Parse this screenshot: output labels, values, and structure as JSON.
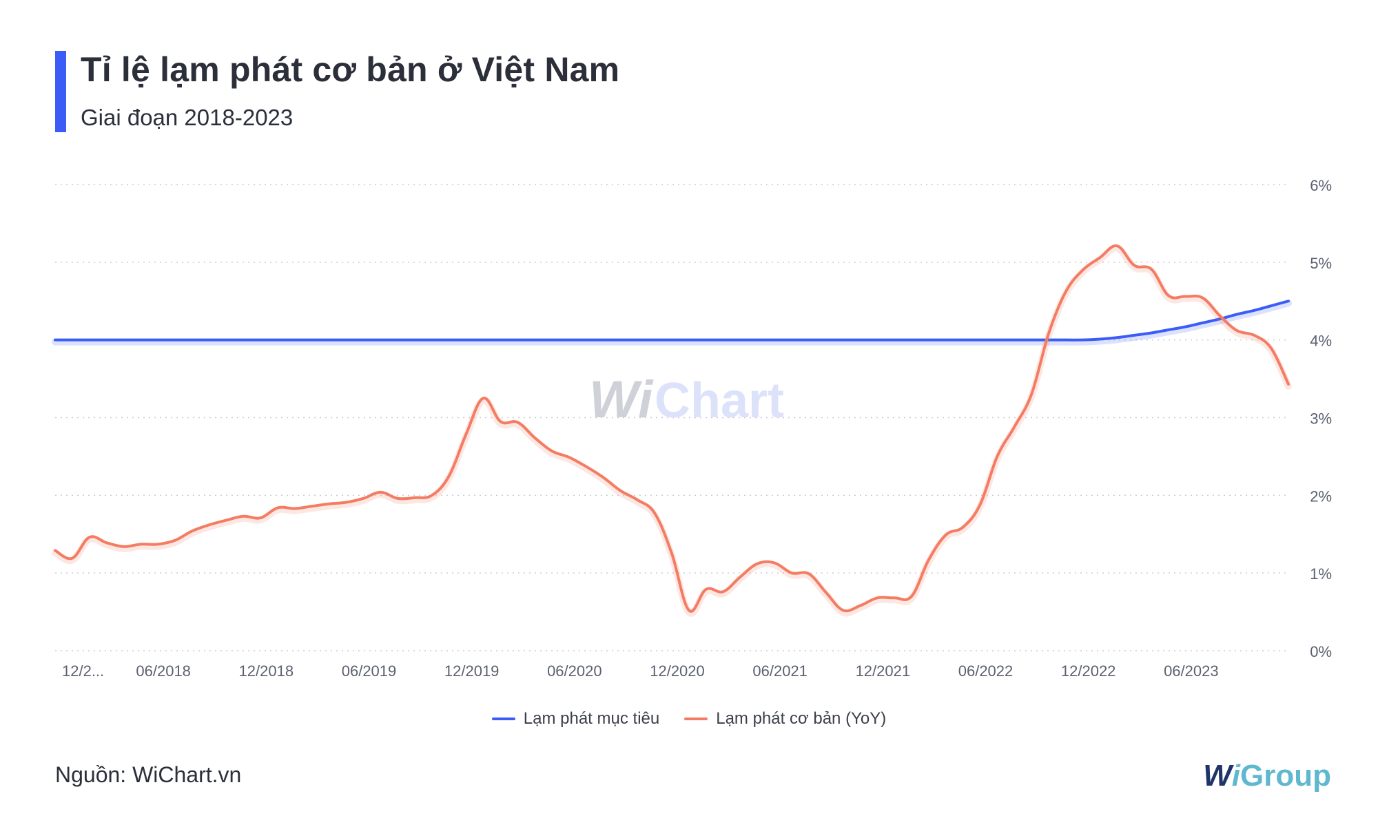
{
  "header": {
    "title": "Tỉ lệ lạm phát cơ bản ở Việt Nam",
    "subtitle": "Giai đoạn 2018-2023"
  },
  "footer": {
    "source": "Nguồn: WiChart.vn",
    "logo_w": "W",
    "logo_i": "i",
    "logo_group": "Group"
  },
  "watermark": {
    "w": "Wi",
    "chart": "Chart"
  },
  "colors": {
    "target": "#3b5cf6",
    "core": "#f47c62",
    "grid": "#c9ccd3",
    "axis_text": "#5b6070",
    "accent_bar": "#3b5cf6"
  },
  "chart_data": {
    "type": "line",
    "y_unit": "%",
    "ylim": [
      0,
      6
    ],
    "yticks": [
      "0%",
      "1%",
      "2%",
      "3%",
      "4%",
      "5%",
      "6%"
    ],
    "xlim": [
      "2017-12",
      "2023-12"
    ],
    "xticks": [
      "12/2...",
      "06/2018",
      "12/2018",
      "06/2019",
      "12/2019",
      "06/2020",
      "12/2020",
      "06/2021",
      "12/2021",
      "06/2022",
      "12/2022",
      "06/2023"
    ],
    "grid": true,
    "legend_position": "bottom",
    "x": [
      "2017-12",
      "2018-01",
      "2018-02",
      "2018-03",
      "2018-04",
      "2018-05",
      "2018-06",
      "2018-07",
      "2018-08",
      "2018-09",
      "2018-10",
      "2018-11",
      "2018-12",
      "2019-01",
      "2019-02",
      "2019-03",
      "2019-04",
      "2019-05",
      "2019-06",
      "2019-07",
      "2019-08",
      "2019-09",
      "2019-10",
      "2019-11",
      "2019-12",
      "2020-01",
      "2020-02",
      "2020-03",
      "2020-04",
      "2020-05",
      "2020-06",
      "2020-07",
      "2020-08",
      "2020-09",
      "2020-10",
      "2020-11",
      "2020-12",
      "2021-01",
      "2021-02",
      "2021-03",
      "2021-04",
      "2021-05",
      "2021-06",
      "2021-07",
      "2021-08",
      "2021-09",
      "2021-10",
      "2021-11",
      "2021-12",
      "2022-01",
      "2022-02",
      "2022-03",
      "2022-04",
      "2022-05",
      "2022-06",
      "2022-07",
      "2022-08",
      "2022-09",
      "2022-10",
      "2022-11",
      "2022-12",
      "2023-01",
      "2023-02",
      "2023-03",
      "2023-04",
      "2023-05",
      "2023-06",
      "2023-07",
      "2023-08",
      "2023-09",
      "2023-10",
      "2023-11",
      "2023-12"
    ],
    "series": [
      {
        "name": "Lạm phát mục tiêu",
        "color": "#3b5cf6",
        "values": [
          4,
          4,
          4,
          4,
          4,
          4,
          4,
          4,
          4,
          4,
          4,
          4,
          4,
          4,
          4,
          4,
          4,
          4,
          4,
          4,
          4,
          4,
          4,
          4,
          4,
          4,
          4,
          4,
          4,
          4,
          4,
          4,
          4,
          4,
          4,
          4,
          4,
          4,
          4,
          4,
          4,
          4,
          4,
          4,
          4,
          4,
          4,
          4,
          4,
          4,
          4,
          4,
          4,
          4,
          4,
          4,
          4,
          4,
          4,
          4,
          4,
          4.01,
          4.03,
          4.06,
          4.09,
          4.13,
          4.17,
          4.22,
          4.27,
          4.33,
          4.38,
          4.44,
          4.5
        ]
      },
      {
        "name": "Lạm phát cơ bản (YoY)",
        "color": "#f47c62",
        "values": [
          1.29,
          1.19,
          1.46,
          1.39,
          1.34,
          1.37,
          1.37,
          1.42,
          1.54,
          1.62,
          1.68,
          1.73,
          1.71,
          1.84,
          1.83,
          1.86,
          1.89,
          1.91,
          1.96,
          2.04,
          1.96,
          1.97,
          2.0,
          2.25,
          2.79,
          3.25,
          2.95,
          2.94,
          2.74,
          2.57,
          2.49,
          2.37,
          2.23,
          2.06,
          1.94,
          1.77,
          1.25,
          0.52,
          0.79,
          0.76,
          0.95,
          1.12,
          1.13,
          1.0,
          0.99,
          0.75,
          0.52,
          0.58,
          0.68,
          0.68,
          0.7,
          1.17,
          1.49,
          1.59,
          1.88,
          2.5,
          2.88,
          3.3,
          4.08,
          4.62,
          4.9,
          5.06,
          5.21,
          4.96,
          4.91,
          4.57,
          4.56,
          4.54,
          4.31,
          4.12,
          4.06,
          3.89,
          3.43
        ]
      }
    ]
  }
}
